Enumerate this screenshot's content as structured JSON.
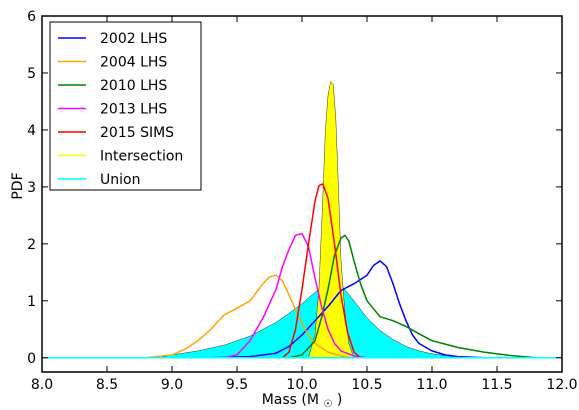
{
  "chart_data": {
    "type": "area",
    "xlabel_main": "Mass (M",
    "xlabel_sub": "☉",
    "xlabel_close": ")",
    "ylabel": "PDF",
    "xlim": [
      8.0,
      12.0
    ],
    "ylim": [
      -0.25,
      6.0
    ],
    "xticks": [
      "8.0",
      "8.5",
      "9.0",
      "9.5",
      "10.0",
      "10.5",
      "11.0",
      "11.5",
      "12.0"
    ],
    "yticks": [
      "0",
      "1",
      "2",
      "3",
      "4",
      "5",
      "6"
    ],
    "legend_position": "top-left",
    "series": [
      {
        "name": "2002 LHS",
        "color": "#0000ff",
        "style": "line",
        "x": [
          9.3,
          9.6,
          9.8,
          9.9,
          10.0,
          10.1,
          10.2,
          10.3,
          10.4,
          10.5,
          10.55,
          10.6,
          10.65,
          10.7,
          10.75,
          10.8,
          10.85,
          10.9,
          11.0,
          11.1,
          11.2,
          11.4
        ],
        "y": [
          0.0,
          0.02,
          0.08,
          0.2,
          0.4,
          0.65,
          0.9,
          1.18,
          1.3,
          1.45,
          1.62,
          1.7,
          1.6,
          1.3,
          0.95,
          0.65,
          0.4,
          0.25,
          0.12,
          0.05,
          0.02,
          0.0
        ]
      },
      {
        "name": "2004 LHS",
        "color": "#ffa500",
        "style": "line",
        "x": [
          8.8,
          9.0,
          9.1,
          9.2,
          9.3,
          9.4,
          9.5,
          9.6,
          9.7,
          9.75,
          9.8,
          9.85,
          9.9,
          9.95,
          10.0,
          10.05,
          10.1,
          10.2,
          10.3,
          10.4
        ],
        "y": [
          0.0,
          0.05,
          0.15,
          0.3,
          0.5,
          0.75,
          0.87,
          1.0,
          1.3,
          1.42,
          1.45,
          1.35,
          1.1,
          0.85,
          0.6,
          0.4,
          0.25,
          0.1,
          0.03,
          0.0
        ]
      },
      {
        "name": "2010 LHS",
        "color": "#008000",
        "style": "line",
        "x": [
          9.9,
          10.0,
          10.1,
          10.15,
          10.2,
          10.25,
          10.3,
          10.33,
          10.36,
          10.4,
          10.45,
          10.5,
          10.6,
          10.7,
          10.8,
          10.9,
          11.0,
          11.2,
          11.4,
          11.6,
          11.8
        ],
        "y": [
          0.0,
          0.05,
          0.3,
          0.7,
          1.2,
          1.8,
          2.1,
          2.15,
          2.05,
          1.7,
          1.3,
          1.0,
          0.72,
          0.65,
          0.55,
          0.42,
          0.3,
          0.18,
          0.1,
          0.04,
          0.0
        ]
      },
      {
        "name": "2013 LHS",
        "color": "#ff00ff",
        "style": "line",
        "x": [
          9.4,
          9.5,
          9.6,
          9.7,
          9.8,
          9.85,
          9.9,
          9.95,
          10.0,
          10.05,
          10.1,
          10.15,
          10.2,
          10.25,
          10.3,
          10.4,
          10.5
        ],
        "y": [
          0.0,
          0.05,
          0.3,
          0.7,
          1.2,
          1.6,
          1.9,
          2.15,
          2.18,
          1.95,
          1.4,
          0.9,
          0.5,
          0.25,
          0.12,
          0.03,
          0.0
        ]
      },
      {
        "name": "2015 SIMS",
        "color": "#ff0000",
        "style": "line",
        "x": [
          9.85,
          9.9,
          9.95,
          10.0,
          10.05,
          10.1,
          10.13,
          10.16,
          10.2,
          10.25,
          10.3,
          10.35,
          10.4,
          10.45
        ],
        "y": [
          0.0,
          0.1,
          0.5,
          1.2,
          2.0,
          2.75,
          3.02,
          3.05,
          2.8,
          2.0,
          1.1,
          0.45,
          0.1,
          0.0
        ]
      },
      {
        "name": "Intersection",
        "color": "#ffff00",
        "style": "fill",
        "x": [
          10.05,
          10.1,
          10.13,
          10.16,
          10.18,
          10.2,
          10.22,
          10.24,
          10.26,
          10.28,
          10.3,
          10.33,
          10.36,
          10.4
        ],
        "y": [
          0.0,
          0.4,
          1.2,
          2.8,
          4.0,
          4.6,
          4.85,
          4.8,
          4.2,
          3.0,
          1.7,
          0.8,
          0.25,
          0.0
        ]
      },
      {
        "name": "Union",
        "color": "#00ffff",
        "style": "fill",
        "x": [
          8.9,
          9.0,
          9.2,
          9.4,
          9.5,
          9.6,
          9.7,
          9.8,
          9.9,
          10.0,
          10.1,
          10.2,
          10.3,
          10.4,
          10.5,
          10.6,
          10.7,
          10.8,
          10.9,
          11.0,
          11.1,
          11.2,
          11.4
        ],
        "y": [
          0.0,
          0.05,
          0.12,
          0.22,
          0.3,
          0.38,
          0.5,
          0.62,
          0.78,
          0.95,
          1.15,
          1.3,
          1.28,
          1.0,
          0.7,
          0.48,
          0.32,
          0.2,
          0.12,
          0.07,
          0.04,
          0.02,
          0.0
        ]
      }
    ]
  }
}
